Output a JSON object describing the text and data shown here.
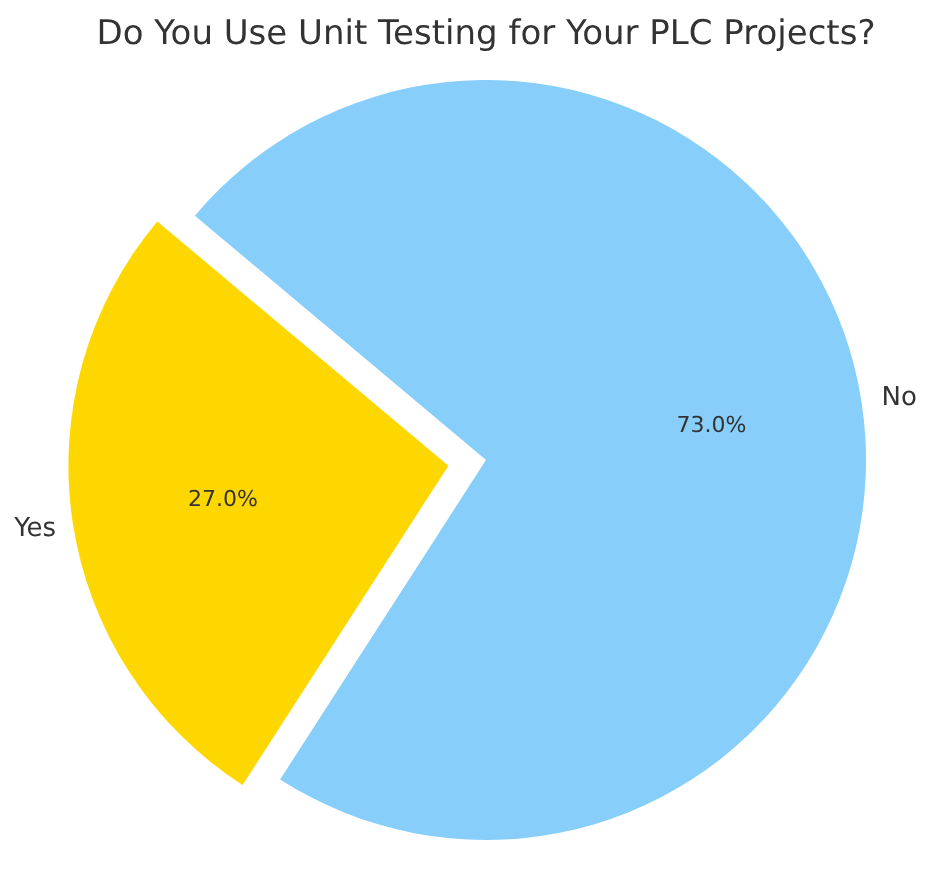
{
  "chart_data": {
    "type": "pie",
    "title": "Do You Use Unit Testing for Your PLC Projects?",
    "categories": [
      "Yes",
      "No"
    ],
    "values": [
      27.0,
      73.0
    ],
    "colors": [
      "#ffd700",
      "#87cefa"
    ],
    "value_labels": [
      "27.0%",
      "73.0%"
    ]
  }
}
